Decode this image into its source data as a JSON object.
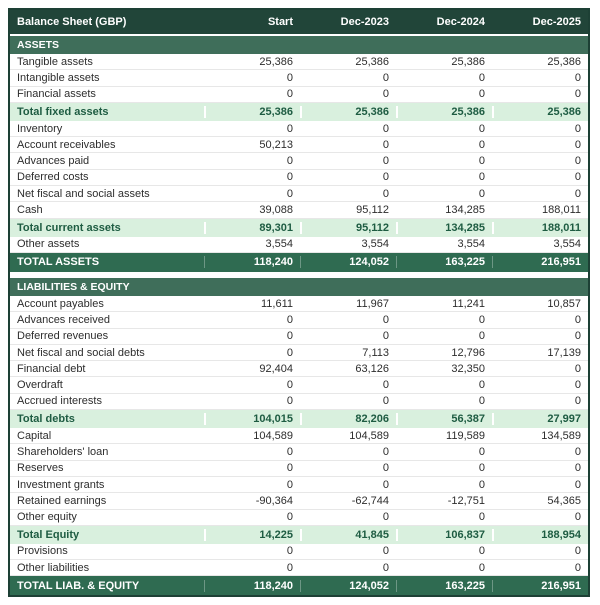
{
  "title": "Balance Sheet (GBP)",
  "columns": [
    "Start",
    "Dec-2023",
    "Dec-2024",
    "Dec-2025"
  ],
  "colors": {
    "header_bg": "#214539",
    "section_bg": "#3f6e5a",
    "total_row_bg": "#2f6b51",
    "subtotal_row_bg": "#d9f0de",
    "subtotal_text": "#1e5c42",
    "outer_border": "#1d4035"
  },
  "sections": [
    {
      "label": "ASSETS",
      "gap_before": false,
      "rows": [
        {
          "label": "Tangible assets",
          "type": "item",
          "values": [
            "25,386",
            "25,386",
            "25,386",
            "25,386"
          ]
        },
        {
          "label": "Intangible assets",
          "type": "item",
          "values": [
            "0",
            "0",
            "0",
            "0"
          ]
        },
        {
          "label": "Financial assets",
          "type": "item",
          "values": [
            "0",
            "0",
            "0",
            "0"
          ]
        },
        {
          "label": "Total fixed assets",
          "type": "subtotal",
          "values": [
            "25,386",
            "25,386",
            "25,386",
            "25,386"
          ]
        },
        {
          "label": "Inventory",
          "type": "item",
          "values": [
            "0",
            "0",
            "0",
            "0"
          ]
        },
        {
          "label": "Account receivables",
          "type": "item",
          "values": [
            "50,213",
            "0",
            "0",
            "0"
          ]
        },
        {
          "label": "Advances paid",
          "type": "item",
          "values": [
            "0",
            "0",
            "0",
            "0"
          ]
        },
        {
          "label": "Deferred costs",
          "type": "item",
          "values": [
            "0",
            "0",
            "0",
            "0"
          ]
        },
        {
          "label": "Net fiscal and social assets",
          "type": "item",
          "values": [
            "0",
            "0",
            "0",
            "0"
          ]
        },
        {
          "label": "Cash",
          "type": "item",
          "values": [
            "39,088",
            "95,112",
            "134,285",
            "188,011"
          ]
        },
        {
          "label": "Total current assets",
          "type": "subtotal",
          "values": [
            "89,301",
            "95,112",
            "134,285",
            "188,011"
          ]
        },
        {
          "label": "Other assets",
          "type": "item",
          "values": [
            "3,554",
            "3,554",
            "3,554",
            "3,554"
          ]
        },
        {
          "label": "TOTAL ASSETS",
          "type": "total",
          "values": [
            "118,240",
            "124,052",
            "163,225",
            "216,951"
          ]
        }
      ]
    },
    {
      "label": "LIABILITIES & EQUITY",
      "gap_before": true,
      "rows": [
        {
          "label": "Account payables",
          "type": "item",
          "values": [
            "11,611",
            "11,967",
            "11,241",
            "10,857"
          ]
        },
        {
          "label": "Advances received",
          "type": "item",
          "values": [
            "0",
            "0",
            "0",
            "0"
          ]
        },
        {
          "label": "Deferred revenues",
          "type": "item",
          "values": [
            "0",
            "0",
            "0",
            "0"
          ]
        },
        {
          "label": "Net fiscal and social debts",
          "type": "item",
          "values": [
            "0",
            "7,113",
            "12,796",
            "17,139"
          ]
        },
        {
          "label": "Financial debt",
          "type": "item",
          "values": [
            "92,404",
            "63,126",
            "32,350",
            "0"
          ]
        },
        {
          "label": "Overdraft",
          "type": "item",
          "values": [
            "0",
            "0",
            "0",
            "0"
          ]
        },
        {
          "label": "Accrued interests",
          "type": "item",
          "values": [
            "0",
            "0",
            "0",
            "0"
          ]
        },
        {
          "label": "Total debts",
          "type": "subtotal",
          "values": [
            "104,015",
            "82,206",
            "56,387",
            "27,997"
          ]
        },
        {
          "label": "Capital",
          "type": "item",
          "values": [
            "104,589",
            "104,589",
            "119,589",
            "134,589"
          ]
        },
        {
          "label": "Shareholders' loan",
          "type": "item",
          "values": [
            "0",
            "0",
            "0",
            "0"
          ]
        },
        {
          "label": "Reserves",
          "type": "item",
          "values": [
            "0",
            "0",
            "0",
            "0"
          ]
        },
        {
          "label": "Investment grants",
          "type": "item",
          "values": [
            "0",
            "0",
            "0",
            "0"
          ]
        },
        {
          "label": "Retained earnings",
          "type": "item",
          "values": [
            "-90,364",
            "-62,744",
            "-12,751",
            "54,365"
          ]
        },
        {
          "label": "Other equity",
          "type": "item",
          "values": [
            "0",
            "0",
            "0",
            "0"
          ]
        },
        {
          "label": "Total Equity",
          "type": "subtotal",
          "values": [
            "14,225",
            "41,845",
            "106,837",
            "188,954"
          ]
        },
        {
          "label": "Provisions",
          "type": "item",
          "values": [
            "0",
            "0",
            "0",
            "0"
          ]
        },
        {
          "label": "Other liabilities",
          "type": "item",
          "values": [
            "0",
            "0",
            "0",
            "0"
          ]
        },
        {
          "label": "TOTAL LIAB. & EQUITY",
          "type": "total",
          "values": [
            "118,240",
            "124,052",
            "163,225",
            "216,951"
          ]
        }
      ]
    }
  ]
}
